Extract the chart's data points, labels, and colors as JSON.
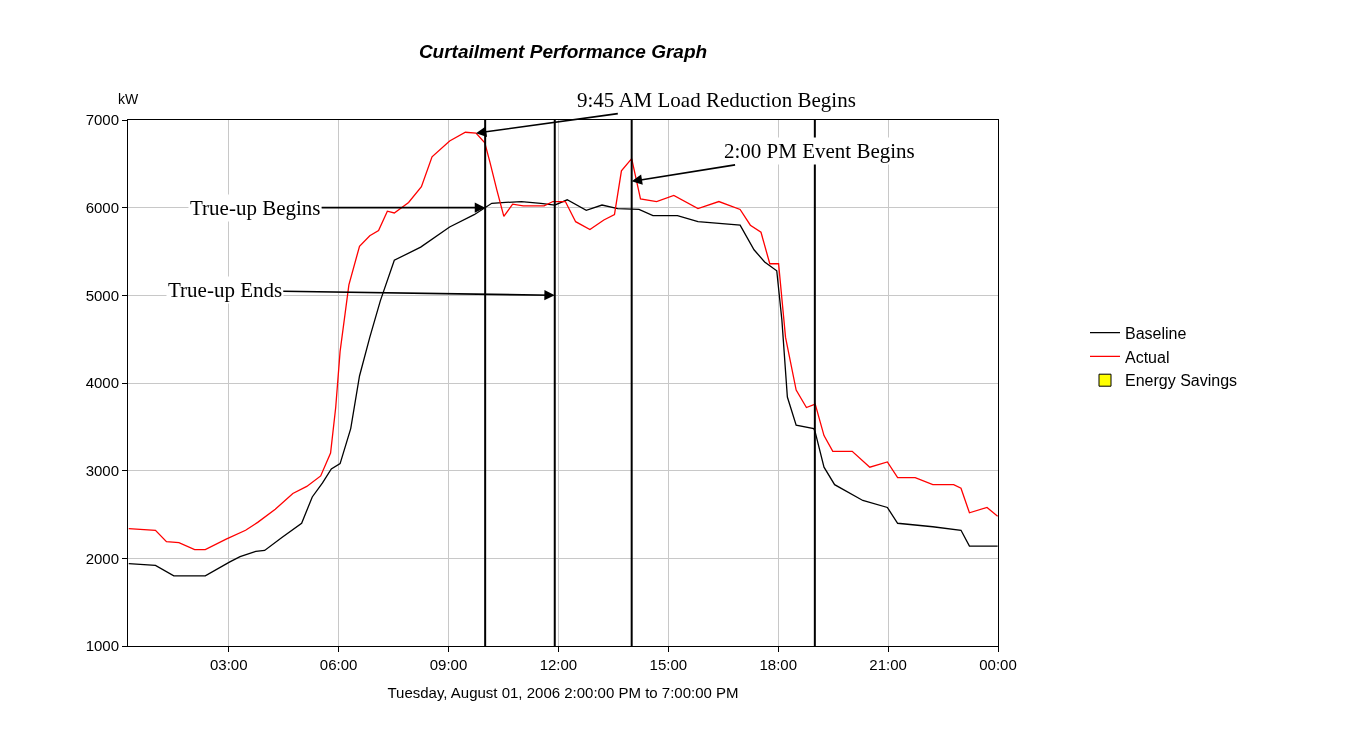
{
  "chart_data": {
    "type": "line",
    "title": "Curtailment Performance Graph",
    "xlabel": "Tuesday, August 01, 2006 2:00:00 PM to 7:00:00 PM",
    "ylabel": "kW",
    "xlim": [
      0.25,
      24
    ],
    "xticks": [
      {
        "value": 3,
        "label": "03:00"
      },
      {
        "value": 6,
        "label": "06:00"
      },
      {
        "value": 9,
        "label": "09:00"
      },
      {
        "value": 12,
        "label": "12:00"
      },
      {
        "value": 15,
        "label": "15:00"
      },
      {
        "value": 18,
        "label": "18:00"
      },
      {
        "value": 21,
        "label": "21:00"
      },
      {
        "value": 24,
        "label": "00:00"
      }
    ],
    "ylim": [
      1000,
      7000
    ],
    "yticks": [
      1000,
      2000,
      3000,
      4000,
      5000,
      6000,
      7000
    ],
    "grid": true,
    "legend": "right",
    "marker": "none",
    "line_style": "solid",
    "series": [
      {
        "name": "Baseline",
        "color": "#000000",
        "x": [
          0.27,
          1.0,
          1.5,
          2.36,
          3.03,
          3.31,
          3.74,
          3.98,
          4.46,
          4.99,
          5.28,
          5.56,
          5.8,
          6.04,
          6.33,
          6.57,
          6.85,
          7.14,
          7.52,
          8.24,
          9.03,
          9.7,
          10.18,
          10.56,
          10.99,
          11.52,
          11.9,
          12.24,
          12.76,
          13.19,
          13.62,
          14.2,
          14.58,
          15.25,
          15.81,
          16.96,
          17.34,
          17.63,
          17.96,
          18.1,
          18.25,
          18.49,
          18.97,
          19.01,
          19.25,
          19.54,
          20.31,
          20.98,
          21.26,
          22.22,
          22.99,
          23.22,
          23.99
        ],
        "values": [
          1940,
          1920,
          1800,
          1800,
          1960,
          2020,
          2080,
          2090,
          2240,
          2400,
          2700,
          2860,
          3020,
          3080,
          3480,
          4080,
          4520,
          4940,
          5400,
          5550,
          5780,
          5920,
          6050,
          6060,
          6070,
          6050,
          6030,
          6090,
          5970,
          6030,
          5990,
          5980,
          5910,
          5910,
          5840,
          5800,
          5520,
          5380,
          5280,
          4720,
          3840,
          3520,
          3480,
          3440,
          3040,
          2840,
          2660,
          2580,
          2400,
          2360,
          2320,
          2140,
          2140
        ]
      },
      {
        "name": "Actual",
        "color": "#ff0000",
        "x": [
          0.27,
          1.0,
          1.3,
          1.64,
          2.07,
          2.36,
          2.93,
          3.46,
          3.79,
          4.27,
          4.75,
          5.13,
          5.51,
          5.78,
          5.92,
          6.04,
          6.28,
          6.57,
          6.85,
          7.09,
          7.33,
          7.52,
          7.91,
          8.26,
          8.55,
          9.03,
          9.46,
          9.75,
          9.99,
          10.13,
          10.32,
          10.51,
          10.75,
          11.04,
          11.61,
          11.85,
          12.19,
          12.47,
          12.86,
          13.24,
          13.53,
          13.72,
          14.0,
          14.24,
          14.68,
          15.15,
          15.81,
          16.38,
          16.96,
          17.24,
          17.53,
          17.77,
          18.01,
          18.2,
          18.49,
          18.77,
          19.01,
          19.25,
          19.49,
          20.02,
          20.5,
          20.98,
          21.26,
          21.74,
          22.22,
          22.79,
          22.99,
          23.22,
          23.7,
          23.99
        ],
        "values": [
          2340,
          2320,
          2190,
          2180,
          2100,
          2100,
          2220,
          2320,
          2410,
          2560,
          2740,
          2820,
          2940,
          3200,
          3720,
          4360,
          5120,
          5560,
          5680,
          5740,
          5960,
          5940,
          6060,
          6240,
          6580,
          6760,
          6860,
          6850,
          6740,
          6520,
          6200,
          5900,
          6040,
          6020,
          6020,
          6070,
          6070,
          5840,
          5750,
          5860,
          5920,
          6420,
          6560,
          6100,
          6070,
          6140,
          5990,
          6070,
          5980,
          5800,
          5720,
          5360,
          5360,
          4520,
          3920,
          3720,
          3760,
          3400,
          3220,
          3220,
          3040,
          3100,
          2920,
          2920,
          2840,
          2840,
          2800,
          2520,
          2580,
          2480
        ]
      },
      {
        "name": "Energy Savings",
        "type": "area",
        "color": "#ffff00"
      }
    ],
    "ref_lines": [
      {
        "axis": "x",
        "value": 10.0,
        "color": "#000000"
      },
      {
        "axis": "x",
        "value": 11.9,
        "color": "#000000"
      },
      {
        "axis": "x",
        "value": 14.0,
        "color": "#000000"
      },
      {
        "axis": "x",
        "value": 19.0,
        "color": "#000000"
      }
    ],
    "annotations": [
      {
        "text": "9:45 AM Load Reduction Begins",
        "x": 9.75,
        "y": 6850
      },
      {
        "text": "2:00 PM Event Begins",
        "x": 14.0,
        "y": 6300
      },
      {
        "text": "True-up Begins",
        "x": 10.0,
        "y": 6000
      },
      {
        "text": "True-up Ends",
        "x": 11.9,
        "y": 5000
      }
    ]
  }
}
